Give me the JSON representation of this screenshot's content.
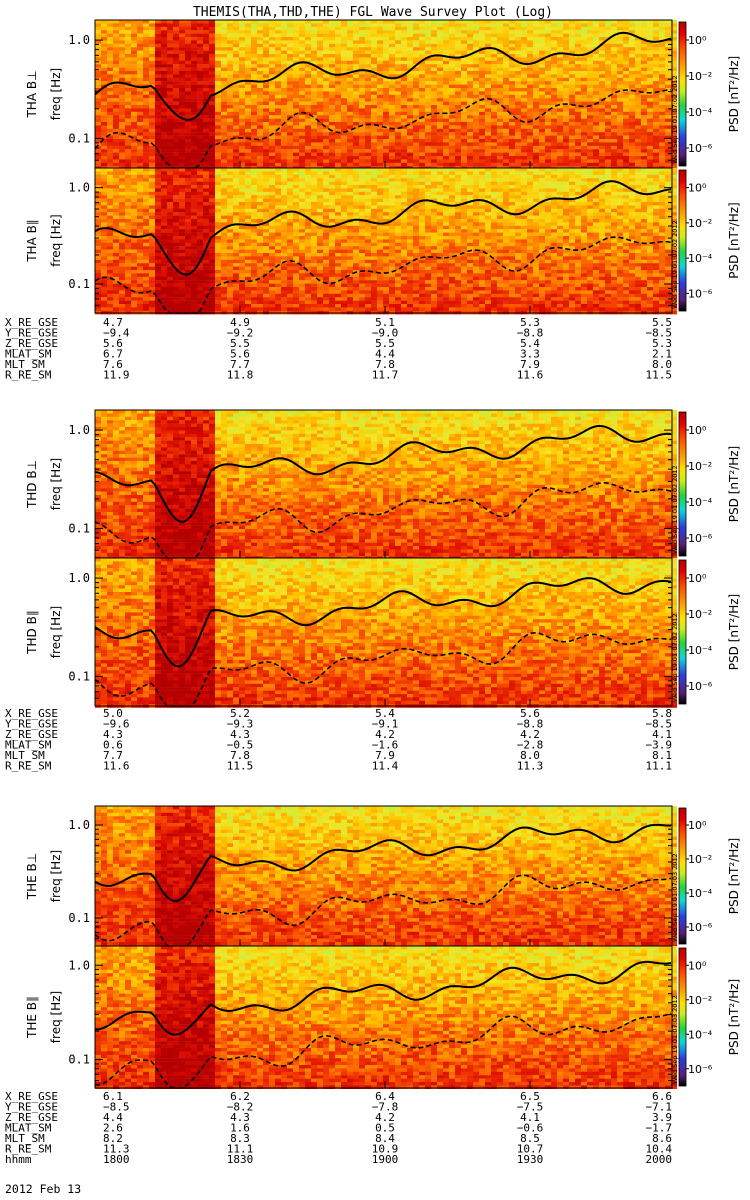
{
  "title": "THEMIS(THA,THD,THE) FGL Wave Survey Plot (Log)",
  "date_label": "2012 Feb 13",
  "colorbar": {
    "label": "PSD [nT²/Hz]",
    "ticks": [
      "10⁰",
      "10⁻²",
      "10⁻⁴",
      "10⁻⁶"
    ],
    "tick_exponents": [
      0,
      -2,
      -4,
      -6
    ],
    "range_exponent": [
      -7,
      1
    ],
    "colors": [
      "#000000",
      "#5a1f78",
      "#2b3fe0",
      "#11d6d6",
      "#26d13a",
      "#c9ec1c",
      "#ffe100",
      "#ff9a00",
      "#ff4a00",
      "#e60000",
      "#b80000"
    ]
  },
  "chart_data": [
    {
      "type": "heatmap",
      "name": "THA B⊥",
      "ylabel": "freq [Hz]",
      "panel_label": "THA B⊥",
      "ylim": [
        0.05,
        1.6
      ],
      "yscale": "log",
      "yticks": [
        "1.0",
        "0.1"
      ],
      "ytick_values": [
        1.0,
        0.1
      ],
      "stamp": "Wed Sep 19 01:07:02 2012",
      "xlim": [
        1800,
        2000
      ]
    },
    {
      "type": "heatmap",
      "name": "THA B∥",
      "ylabel": "freq [Hz]",
      "panel_label": "THA B∥",
      "ylim": [
        0.05,
        1.6
      ],
      "yscale": "log",
      "yticks": [
        "1.0",
        "0.1"
      ],
      "ytick_values": [
        1.0,
        0.1
      ],
      "stamp": "Wed Sep 19 01:07:02 2012",
      "xlim": [
        1800,
        2000
      ]
    },
    {
      "type": "heatmap",
      "name": "THD B⊥",
      "ylabel": "freq [Hz]",
      "panel_label": "THD B⊥",
      "ylim": [
        0.05,
        1.6
      ],
      "yscale": "log",
      "yticks": [
        "1.0",
        "0.1"
      ],
      "ytick_values": [
        1.0,
        0.1
      ],
      "stamp": "Wed Sep 19 01:07:02 2012",
      "xlim": [
        1800,
        2000
      ]
    },
    {
      "type": "heatmap",
      "name": "THD B∥",
      "ylabel": "freq [Hz]",
      "panel_label": "THD B∥",
      "ylim": [
        0.05,
        1.6
      ],
      "yscale": "log",
      "yticks": [
        "1.0",
        "0.1"
      ],
      "ytick_values": [
        1.0,
        0.1
      ],
      "stamp": "Wed Sep 19 01:07:02 2012",
      "xlim": [
        1800,
        2000
      ]
    },
    {
      "type": "heatmap",
      "name": "THE B⊥",
      "ylabel": "freq [Hz]",
      "panel_label": "THE B⊥",
      "ylim": [
        0.05,
        1.6
      ],
      "yscale": "log",
      "yticks": [
        "1.0",
        "0.1"
      ],
      "ytick_values": [
        1.0,
        0.1
      ],
      "stamp": "Wed Sep 19 01:07:03 2012",
      "xlim": [
        1800,
        2000
      ]
    },
    {
      "type": "heatmap",
      "name": "THE B∥",
      "ylabel": "freq [Hz]",
      "panel_label": "THE B∥",
      "ylim": [
        0.05,
        1.6
      ],
      "yscale": "log",
      "yticks": [
        "1.0",
        "0.1"
      ],
      "ytick_values": [
        1.0,
        0.1
      ],
      "stamp": "Wed Sep 19 01:07:03 2012",
      "xlim": [
        1800,
        2000
      ]
    }
  ],
  "ephemeris": [
    {
      "probe": "THA",
      "rows": [
        {
          "label": "X_RE_GSE",
          "values": [
            "4.7",
            "4.9",
            "5.1",
            "5.3",
            "5.5"
          ]
        },
        {
          "label": "Y_RE_GSE",
          "values": [
            "−9.4",
            "−9.2",
            "−9.0",
            "−8.8",
            "−8.5"
          ]
        },
        {
          "label": "Z_RE_GSE",
          "values": [
            "5.6",
            "5.5",
            "5.5",
            "5.4",
            "5.3"
          ]
        },
        {
          "label": "MLAT_SM",
          "values": [
            "6.7",
            "5.6",
            "4.4",
            "3.3",
            "2.1"
          ]
        },
        {
          "label": "MLT_SM",
          "values": [
            "7.6",
            "7.7",
            "7.8",
            "7.9",
            "8.0"
          ]
        },
        {
          "label": "R_RE_SM",
          "values": [
            "11.9",
            "11.8",
            "11.7",
            "11.6",
            "11.5"
          ]
        }
      ]
    },
    {
      "probe": "THD",
      "rows": [
        {
          "label": "X_RE_GSE",
          "values": [
            "5.0",
            "5.2",
            "5.4",
            "5.6",
            "5.8"
          ]
        },
        {
          "label": "Y_RE_GSE",
          "values": [
            "−9.6",
            "−9.3",
            "−9.1",
            "−8.8",
            "−8.5"
          ]
        },
        {
          "label": "Z_RE_GSE",
          "values": [
            "4.3",
            "4.3",
            "4.2",
            "4.2",
            "4.1"
          ]
        },
        {
          "label": "MLAT_SM",
          "values": [
            "0.6",
            "−0.5",
            "−1.6",
            "−2.8",
            "−3.9"
          ]
        },
        {
          "label": "MLT_SM",
          "values": [
            "7.7",
            "7.8",
            "7.9",
            "8.0",
            "8.1"
          ]
        },
        {
          "label": "R_RE_SM",
          "values": [
            "11.6",
            "11.5",
            "11.4",
            "11.3",
            "11.1"
          ]
        }
      ]
    },
    {
      "probe": "THE",
      "rows": [
        {
          "label": "X_RE_GSE",
          "values": [
            "6.1",
            "6.2",
            "6.4",
            "6.5",
            "6.6"
          ]
        },
        {
          "label": "Y_RE_GSE",
          "values": [
            "−8.5",
            "−8.2",
            "−7.8",
            "−7.5",
            "−7.1"
          ]
        },
        {
          "label": "Z_RE_GSE",
          "values": [
            "4.4",
            "4.3",
            "4.2",
            "4.1",
            "3.9"
          ]
        },
        {
          "label": "MLAT_SM",
          "values": [
            "2.6",
            "1.6",
            "0.5",
            "−0.6",
            "−1.7"
          ]
        },
        {
          "label": "MLT_SM",
          "values": [
            "8.2",
            "8.3",
            "8.4",
            "8.5",
            "8.6"
          ]
        },
        {
          "label": "R_RE_SM",
          "values": [
            "11.3",
            "11.1",
            "10.9",
            "10.7",
            "10.4"
          ]
        },
        {
          "label": "hhmm",
          "values": [
            "1800",
            "1830",
            "1900",
            "1930",
            "2000"
          ]
        }
      ]
    }
  ]
}
